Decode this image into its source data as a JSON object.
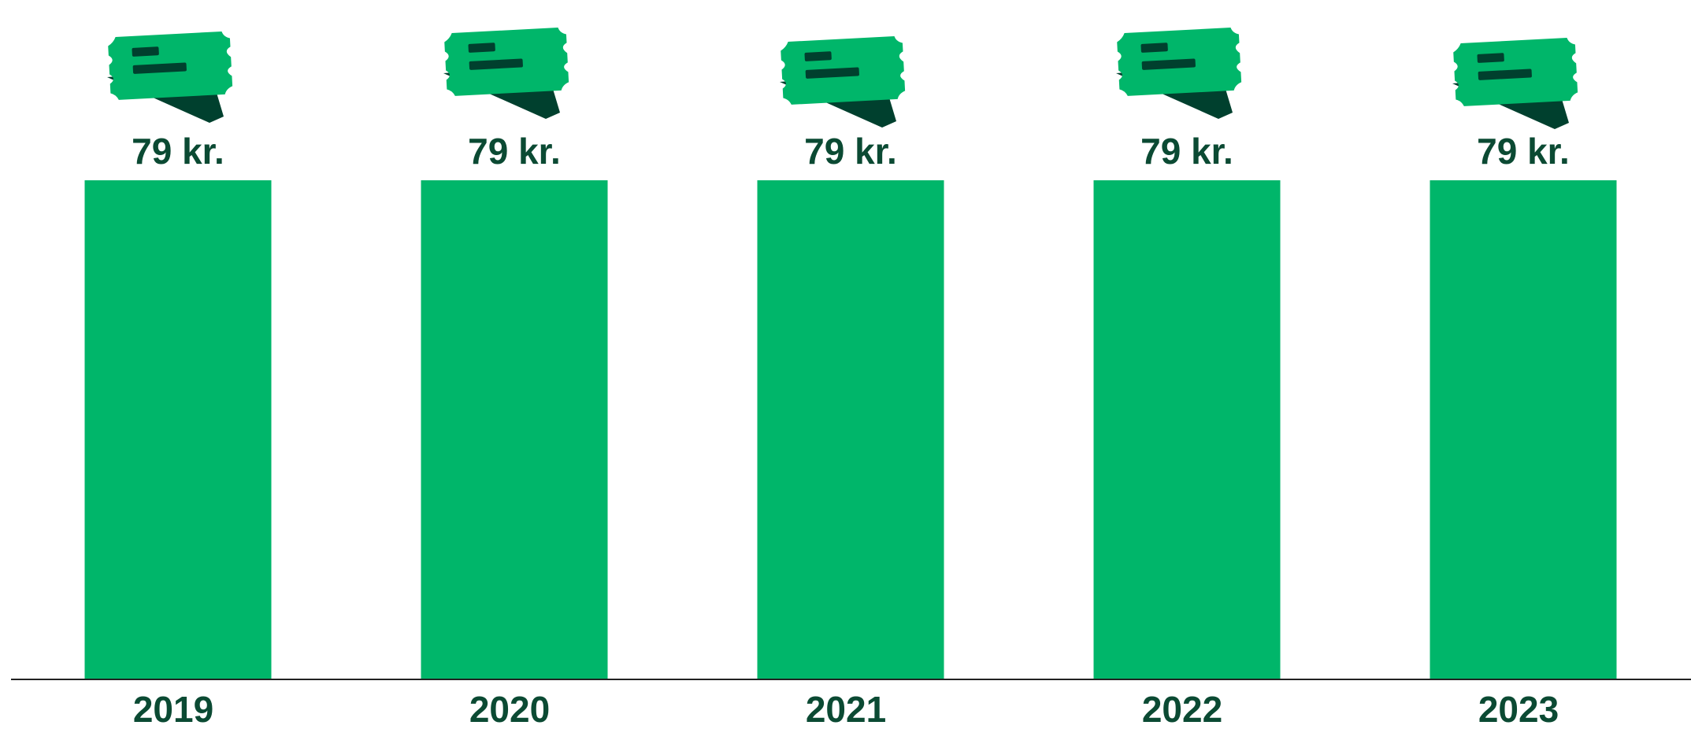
{
  "chart_data": {
    "type": "bar",
    "categories": [
      "2019",
      "2020",
      "2021",
      "2022",
      "2023"
    ],
    "values": [
      79,
      79,
      79,
      79,
      79
    ],
    "value_labels": [
      "79 kr.",
      "79 kr.",
      "79 kr.",
      "79 kr.",
      "79 kr."
    ],
    "color": "#00b66a",
    "ylim": [
      0,
      79
    ]
  }
}
